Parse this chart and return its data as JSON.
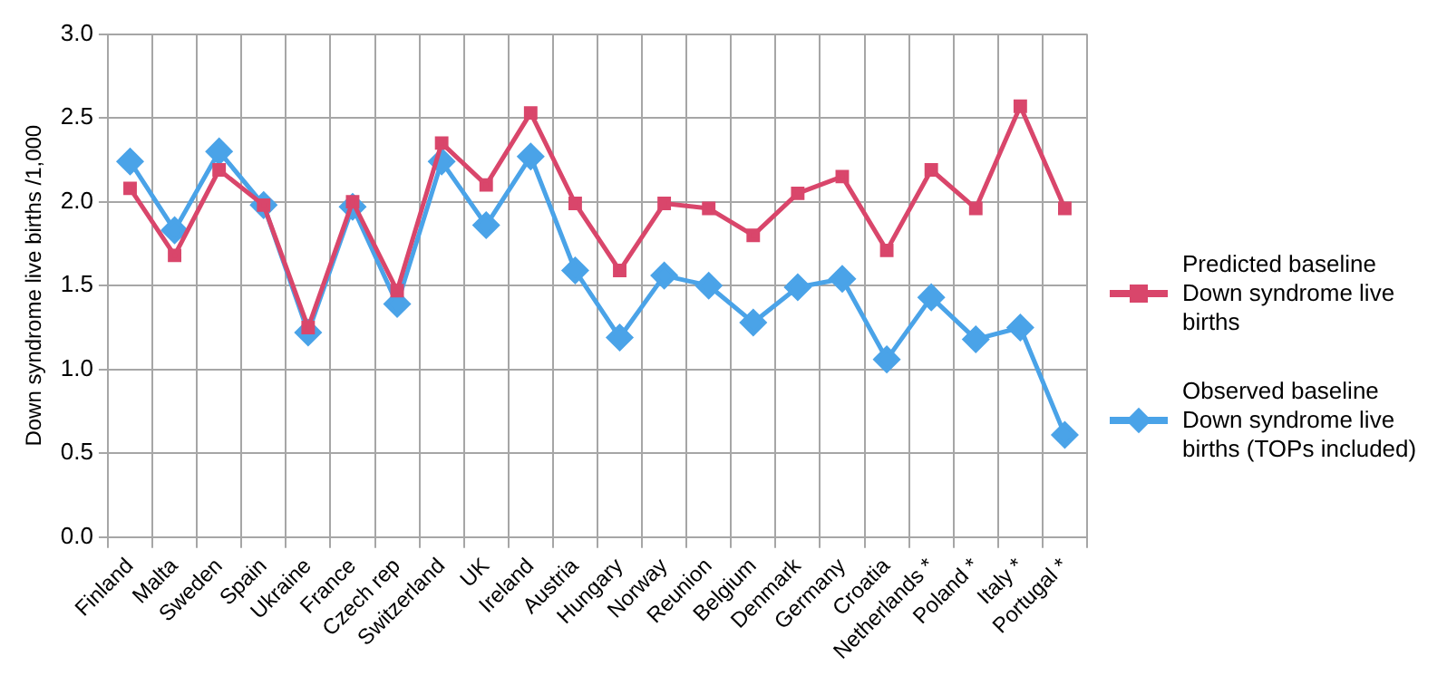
{
  "chart_data": {
    "type": "line",
    "ylabel": "Down syndrome live births /1,000",
    "categories": [
      "Finland",
      "Malta",
      "Sweden",
      "Spain",
      "Ukraine",
      "France",
      "Czech rep",
      "Switzerland",
      "UK",
      "Ireland",
      "Austria",
      "Hungary",
      "Norway",
      "Reunion",
      "Belgium",
      "Denmark",
      "Germany",
      "Croatia",
      "Netherlands *",
      "Poland *",
      "Italy *",
      "Portugal *"
    ],
    "series": [
      {
        "name": "Predicted baseline Down syndrome live births",
        "color": "#d9466b",
        "marker": "square",
        "values": [
          2.08,
          1.68,
          2.19,
          1.98,
          1.25,
          2.0,
          1.47,
          2.35,
          2.1,
          2.53,
          1.99,
          1.59,
          1.99,
          1.96,
          1.8,
          2.05,
          2.15,
          1.71,
          2.19,
          1.96,
          2.57,
          1.96
        ]
      },
      {
        "name": "Observed baseline Down syndrome live births (TOPs included)",
        "color": "#4aa3e8",
        "marker": "diamond",
        "values": [
          2.24,
          1.83,
          2.3,
          1.98,
          1.22,
          1.97,
          1.39,
          2.24,
          1.86,
          2.27,
          1.59,
          1.19,
          1.56,
          1.5,
          1.28,
          1.49,
          1.54,
          1.06,
          1.43,
          1.18,
          1.25,
          0.61
        ]
      }
    ],
    "ylim": [
      0,
      3
    ],
    "yticks": [
      {
        "value": 0,
        "label": "0.0"
      },
      0.5,
      {
        "value": 1,
        "label": "1.0"
      },
      1.5,
      {
        "value": 2,
        "label": "2.0"
      },
      2.5,
      {
        "value": 3,
        "label": "3.0"
      }
    ],
    "grid": true,
    "legend": "right",
    "line_style": "solid"
  }
}
